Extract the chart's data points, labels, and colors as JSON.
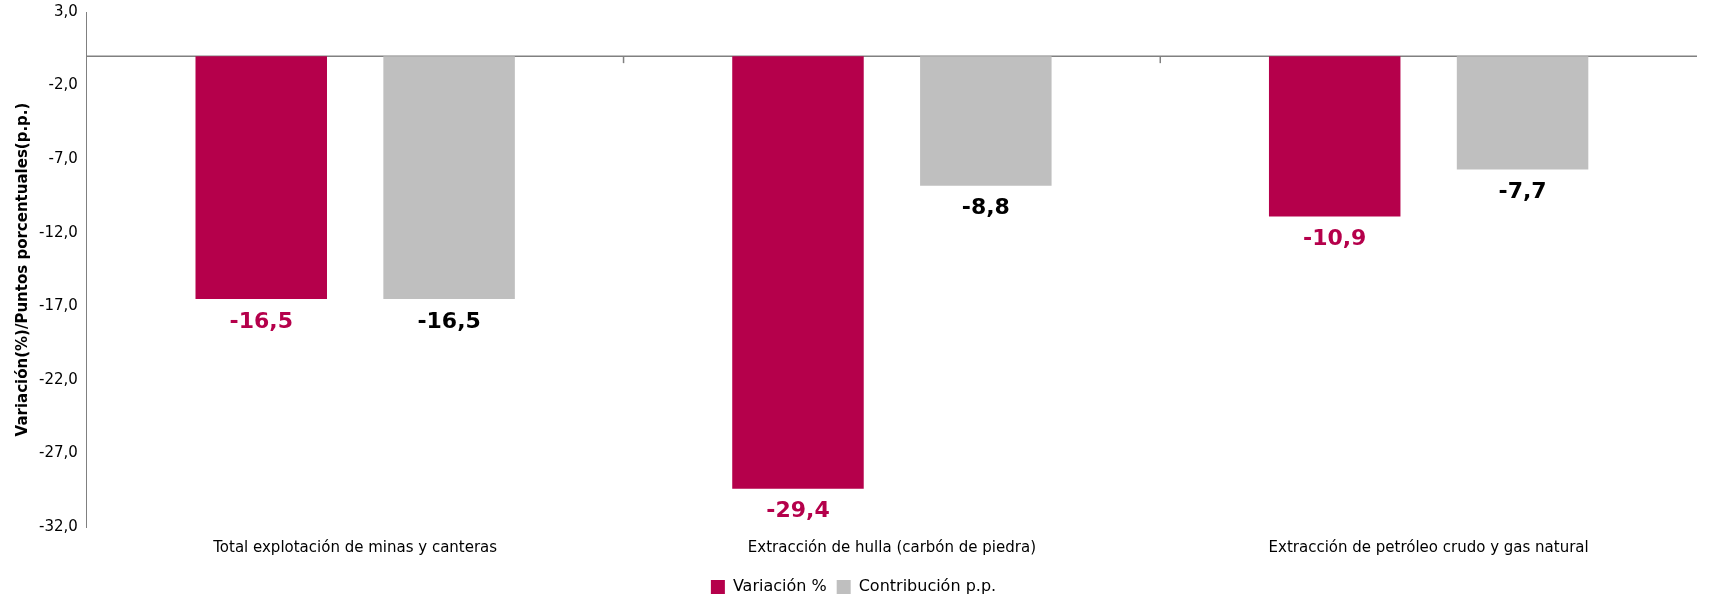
{
  "chart_data": {
    "type": "bar",
    "ylabel": "Variación(%)/Puntos porcentuales(p.p.)",
    "categories": [
      "Total explotación de minas y canteras",
      "Extracción de hulla (carbón de piedra)",
      "Extracción de petróleo crudo y gas natural"
    ],
    "series": [
      {
        "name": "Variación %",
        "color": "#b5004b",
        "values": [
          -16.5,
          -29.4,
          -10.9
        ],
        "value_labels": [
          "-16,5",
          "-29,4",
          "-10,9"
        ]
      },
      {
        "name": "Contribución p.p.",
        "color": "#bfbfbf",
        "values": [
          -16.5,
          -8.8,
          -7.7
        ],
        "value_labels": [
          "-16,5",
          "-8,8",
          "-7,7"
        ]
      }
    ],
    "ylim": [
      -32,
      3
    ],
    "yticks": [
      {
        "value": 3,
        "label": "3,0"
      },
      {
        "value": -2,
        "label": "-2,0"
      },
      {
        "value": -7,
        "label": "-7,0"
      },
      {
        "value": -12,
        "label": "-12,0"
      },
      {
        "value": -17,
        "label": "-17,0"
      },
      {
        "value": -22,
        "label": "-22,0"
      },
      {
        "value": -27,
        "label": "-27,0"
      },
      {
        "value": -32,
        "label": "-32,0"
      }
    ],
    "ref_lines": [
      {
        "axis": "y",
        "value": 0,
        "color": "#808080"
      }
    ],
    "grid": false,
    "legend": "bottom"
  }
}
